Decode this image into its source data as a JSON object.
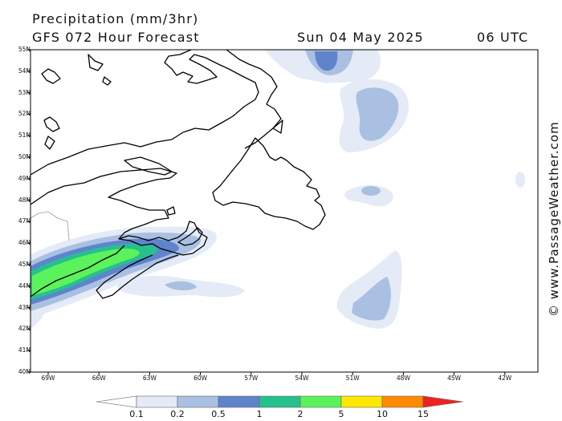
{
  "header": {
    "title": "Precipitation (mm/3hr)",
    "model": "GFS 072 Hour Forecast",
    "date": "Sun 04 May 2025",
    "time": "06 UTC"
  },
  "credit": "© www.PassageWeather.com",
  "latitude_labels": [
    "55N",
    "54N",
    "53N",
    "52N",
    "51N",
    "50N",
    "49N",
    "48N",
    "47N",
    "46N",
    "45N",
    "44N",
    "43N",
    "42N",
    "41N",
    "40N"
  ],
  "longitude_labels": [
    "69W",
    "66W",
    "63W",
    "60W",
    "57W",
    "54W",
    "51W",
    "48W",
    "45W",
    "42W"
  ],
  "colorbar": {
    "labels": [
      "0.1",
      "0.2",
      "0.5",
      "1",
      "2",
      "5",
      "10",
      "15"
    ],
    "colors": [
      "#ffffff",
      "#e4ebf6",
      "#a9c0e2",
      "#5f84cc",
      "#27c08f",
      "#5cf25c",
      "#ffe800",
      "#ff8a00",
      "#ee2222"
    ]
  }
}
